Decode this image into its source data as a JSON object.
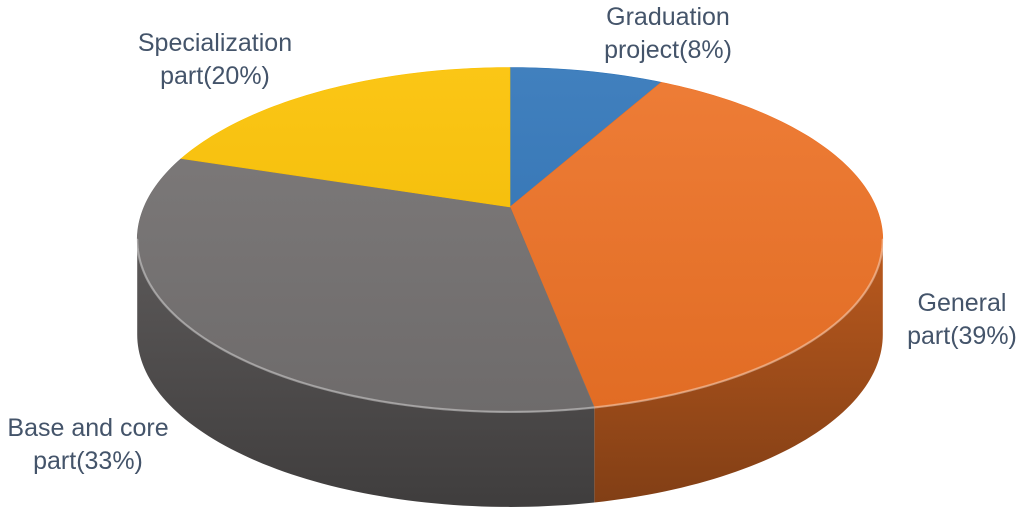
{
  "chart_data": {
    "type": "pie",
    "style": "3d-perspective",
    "title": "",
    "categories": [
      "Graduation project",
      "General part",
      "Base and core part",
      "Specialization part"
    ],
    "values": [
      8,
      39,
      33,
      20
    ],
    "unit": "%",
    "colors": [
      "#3075B8",
      "#ED7226",
      "#747171",
      "#FBC102"
    ],
    "start_angle_deg": 0,
    "direction": "clockwise",
    "legend": "none",
    "labels_outside": true,
    "labels": [
      {
        "lines": [
          "Graduation",
          "project(8%)"
        ]
      },
      {
        "lines": [
          "General",
          "part(39%)"
        ]
      },
      {
        "lines": [
          "Base and core",
          "part(33%)"
        ]
      },
      {
        "lines": [
          "Specialization",
          "part(20%)"
        ]
      }
    ],
    "label_color": "#44546A",
    "background": "#FFFFFF"
  }
}
